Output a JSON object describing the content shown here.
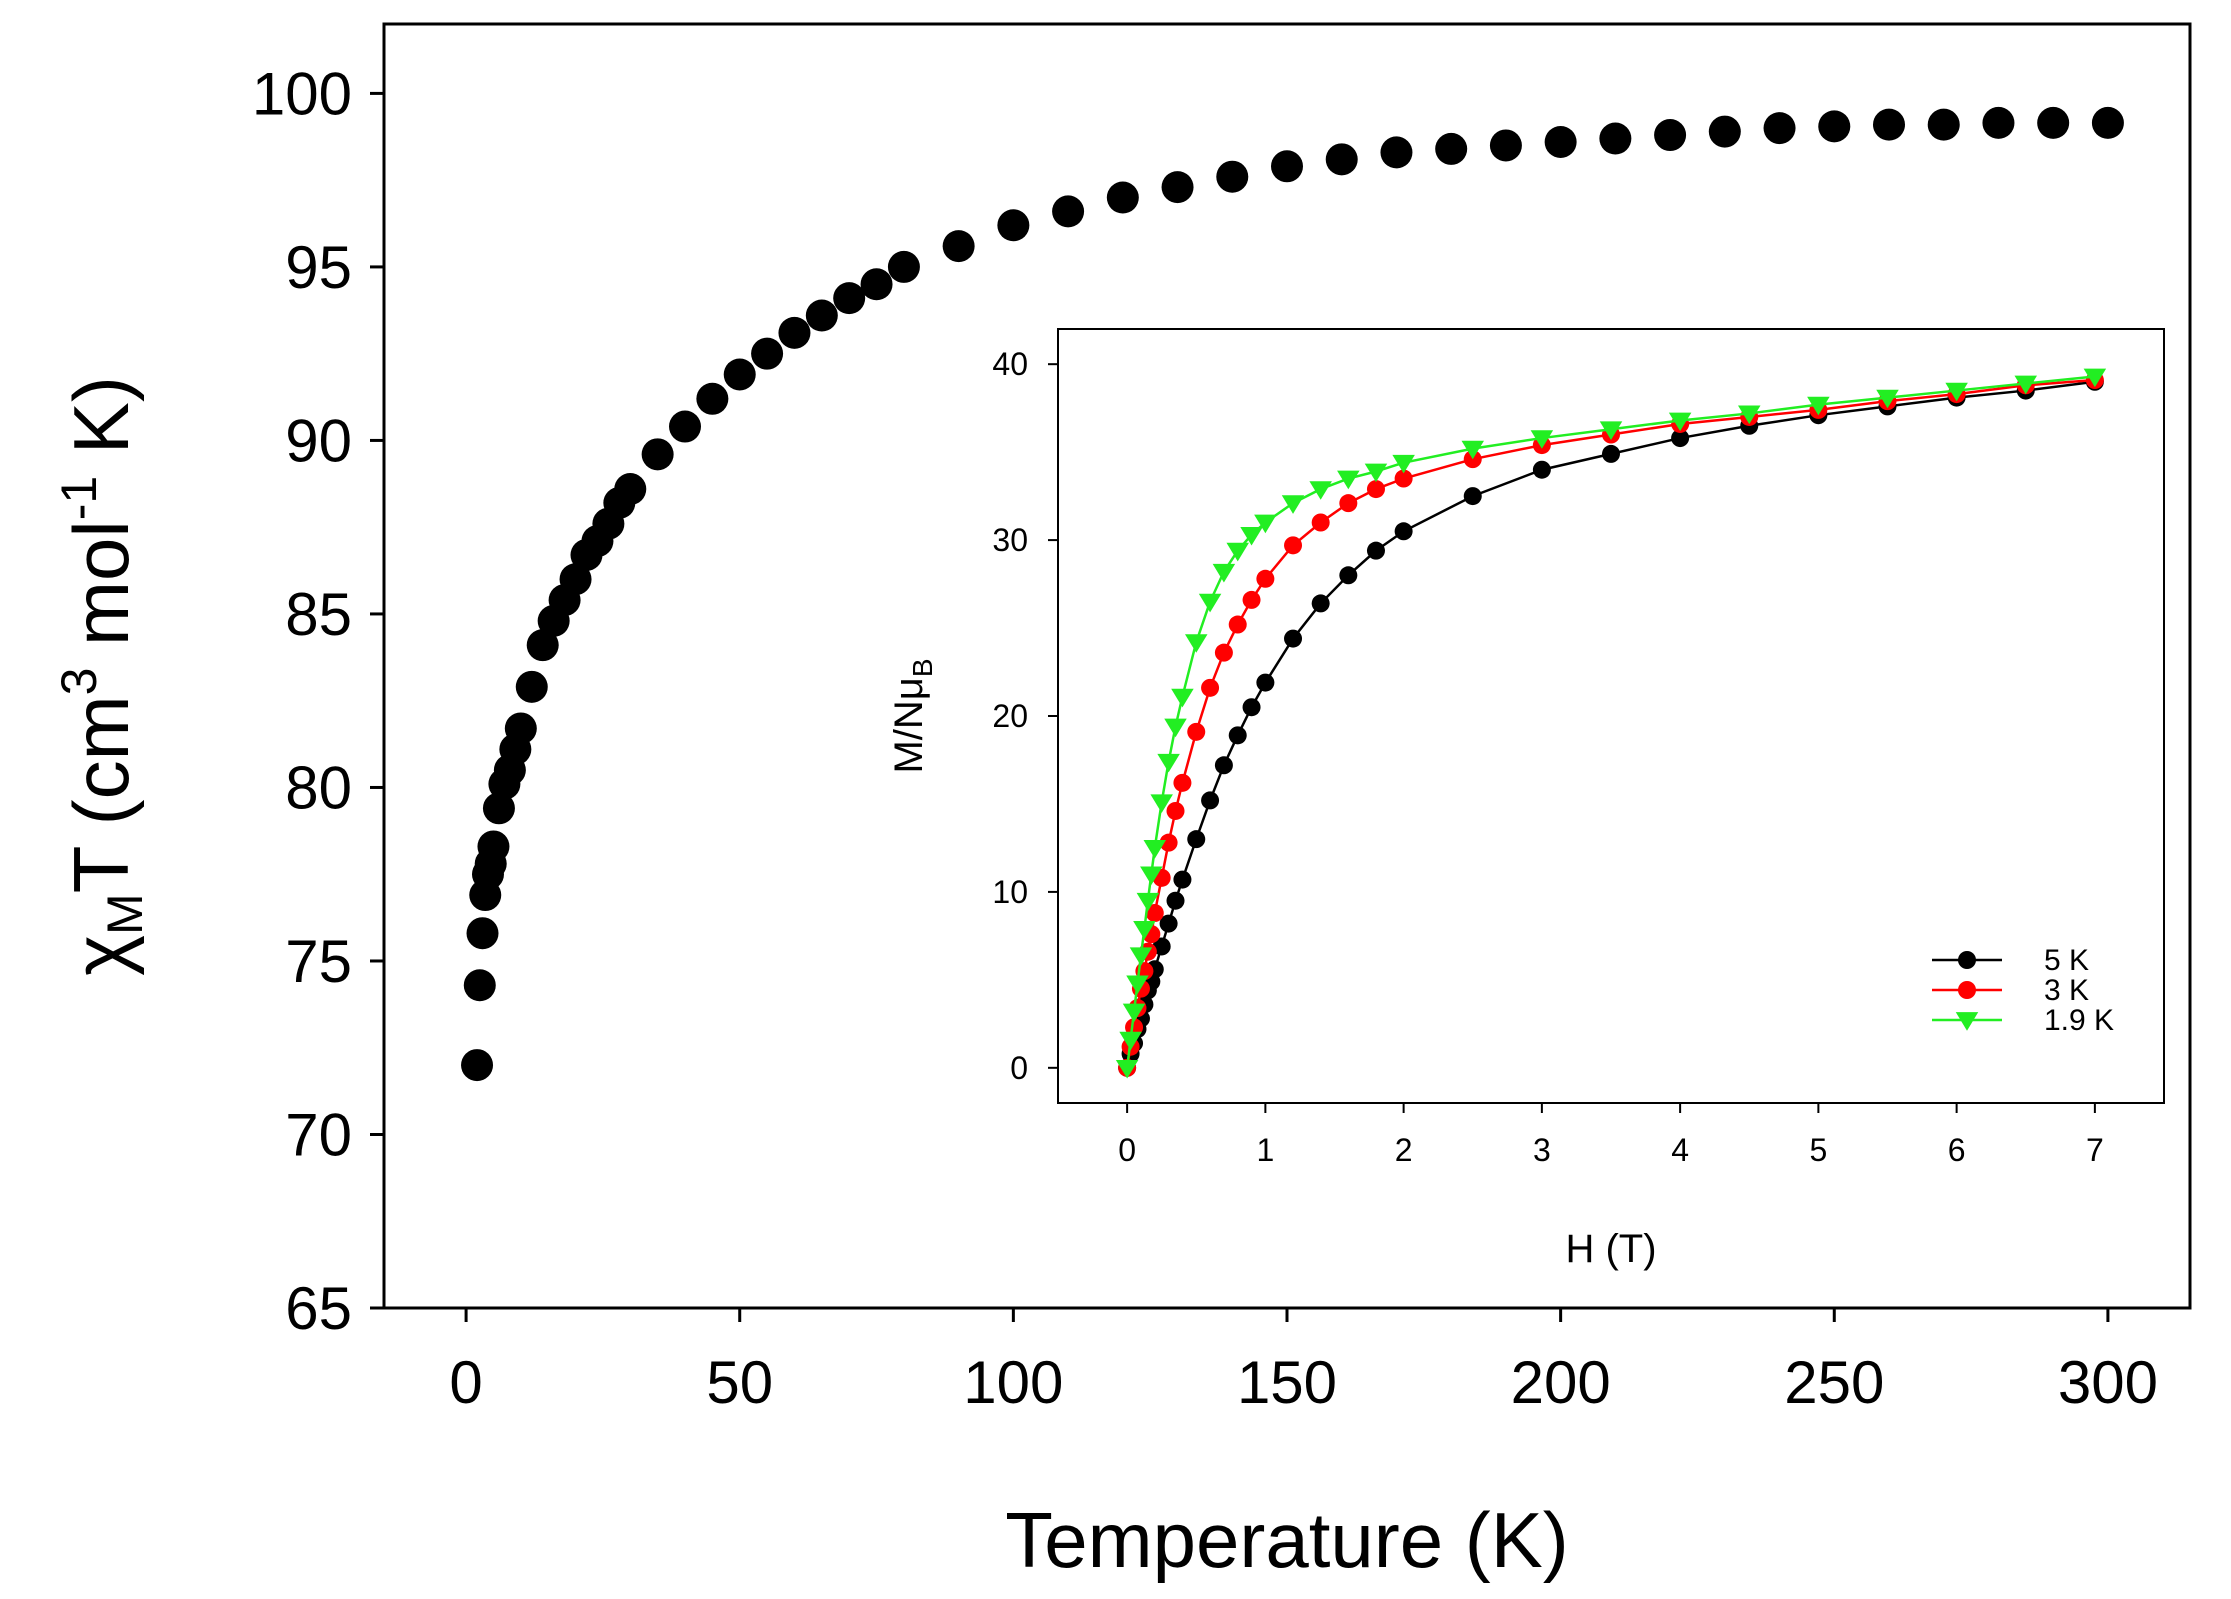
{
  "chart_data": [
    {
      "type": "scatter",
      "role": "main",
      "xlabel": "Temperature (K)",
      "ylabel": {
        "chi": "χ",
        "sub_M": "M",
        "T": "T (cm",
        "sup_3": "3",
        "mol": " mol",
        "sup_neg1": "-1",
        "K": " K)"
      },
      "xlim": [
        -15,
        315
      ],
      "ylim": [
        65,
        102
      ],
      "xticks": [
        0,
        50,
        100,
        150,
        200,
        250,
        300
      ],
      "yticks": [
        65,
        70,
        75,
        80,
        85,
        90,
        95,
        100
      ],
      "marker": "circle",
      "color": "#000000",
      "series": [
        {
          "name": "χMT",
          "x": [
            2,
            2.5,
            3,
            3.5,
            4,
            4.5,
            5,
            6,
            7,
            8,
            9,
            10,
            12,
            14,
            16,
            18,
            20,
            22,
            24,
            26,
            28,
            30,
            35,
            40,
            45,
            50,
            55,
            60,
            65,
            70,
            75,
            80,
            90,
            100,
            110,
            120,
            130,
            140,
            150,
            160,
            170,
            180,
            190,
            200,
            210,
            220,
            230,
            240,
            250,
            260,
            270,
            280,
            290,
            300
          ],
          "y": [
            72.0,
            74.3,
            75.8,
            76.9,
            77.5,
            77.8,
            78.3,
            79.4,
            80.1,
            80.5,
            81.1,
            81.7,
            82.9,
            84.1,
            84.8,
            85.4,
            86.0,
            86.7,
            87.1,
            87.6,
            88.2,
            88.6,
            89.6,
            90.4,
            91.2,
            91.9,
            92.5,
            93.1,
            93.6,
            94.1,
            94.5,
            95.0,
            95.6,
            96.2,
            96.6,
            97.0,
            97.3,
            97.6,
            97.9,
            98.1,
            98.3,
            98.4,
            98.5,
            98.6,
            98.7,
            98.8,
            98.9,
            99.0,
            99.05,
            99.1,
            99.1,
            99.15,
            99.15,
            99.15
          ]
        }
      ]
    },
    {
      "type": "line",
      "role": "inset",
      "xlabel": "H (T)",
      "ylabel": {
        "main": "M/Nμ",
        "sub_B": "B"
      },
      "xlim": [
        -0.5,
        7.5
      ],
      "ylim": [
        -2,
        42
      ],
      "xticks": [
        0,
        1,
        2,
        3,
        4,
        5,
        6,
        7
      ],
      "yticks": [
        0,
        10,
        20,
        30,
        40
      ],
      "legend_position": "bottom-right",
      "series": [
        {
          "name": "5 K",
          "color": "#000000",
          "marker": "circle",
          "x": [
            0,
            0.025,
            0.05,
            0.075,
            0.1,
            0.125,
            0.15,
            0.175,
            0.2,
            0.25,
            0.3,
            0.35,
            0.4,
            0.5,
            0.6,
            0.7,
            0.8,
            0.9,
            1.0,
            1.2,
            1.4,
            1.6,
            1.8,
            2.0,
            2.5,
            3.0,
            3.5,
            4.0,
            4.5,
            5.0,
            5.5,
            6.0,
            6.5,
            7.0
          ],
          "y": [
            0,
            0.8,
            1.4,
            2.2,
            2.8,
            3.6,
            4.4,
            4.9,
            5.6,
            6.9,
            8.2,
            9.5,
            10.7,
            13.0,
            15.2,
            17.2,
            18.9,
            20.5,
            21.9,
            24.4,
            26.4,
            28.0,
            29.4,
            30.5,
            32.5,
            34.0,
            34.9,
            35.8,
            36.5,
            37.1,
            37.6,
            38.1,
            38.5,
            39.0
          ]
        },
        {
          "name": "3 K",
          "color": "#ff0000",
          "marker": "circle",
          "x": [
            0,
            0.025,
            0.05,
            0.075,
            0.1,
            0.125,
            0.15,
            0.175,
            0.2,
            0.25,
            0.3,
            0.35,
            0.4,
            0.5,
            0.6,
            0.7,
            0.8,
            0.9,
            1.0,
            1.2,
            1.4,
            1.6,
            1.8,
            2.0,
            2.5,
            3.0,
            3.5,
            4.0,
            4.5,
            5.0,
            5.5,
            6.0,
            6.5,
            7.0
          ],
          "y": [
            0,
            1.2,
            2.3,
            3.4,
            4.5,
            5.5,
            6.6,
            7.6,
            8.8,
            10.8,
            12.8,
            14.6,
            16.2,
            19.1,
            21.6,
            23.6,
            25.2,
            26.6,
            27.8,
            29.7,
            31.0,
            32.1,
            32.9,
            33.5,
            34.6,
            35.4,
            36.0,
            36.6,
            37.0,
            37.4,
            37.9,
            38.3,
            38.8,
            39.1
          ]
        },
        {
          "name": "1.9 K",
          "color": "#22ee22",
          "marker": "triangle-down",
          "x": [
            0,
            0.025,
            0.05,
            0.075,
            0.1,
            0.125,
            0.15,
            0.175,
            0.2,
            0.25,
            0.3,
            0.35,
            0.4,
            0.5,
            0.6,
            0.7,
            0.8,
            0.9,
            1.0,
            1.2,
            1.4,
            1.6,
            1.8,
            2.0,
            2.5,
            3.0,
            3.5,
            4.0,
            4.5,
            5.0,
            5.5,
            6.0,
            6.5,
            7.0
          ],
          "y": [
            0,
            1.6,
            3.2,
            4.8,
            6.4,
            7.9,
            9.5,
            11.0,
            12.5,
            15.1,
            17.4,
            19.4,
            21.1,
            24.2,
            26.5,
            28.2,
            29.4,
            30.3,
            31.0,
            32.1,
            32.9,
            33.5,
            33.9,
            34.4,
            35.2,
            35.8,
            36.3,
            36.8,
            37.2,
            37.7,
            38.1,
            38.5,
            38.9,
            39.3
          ]
        }
      ]
    }
  ]
}
